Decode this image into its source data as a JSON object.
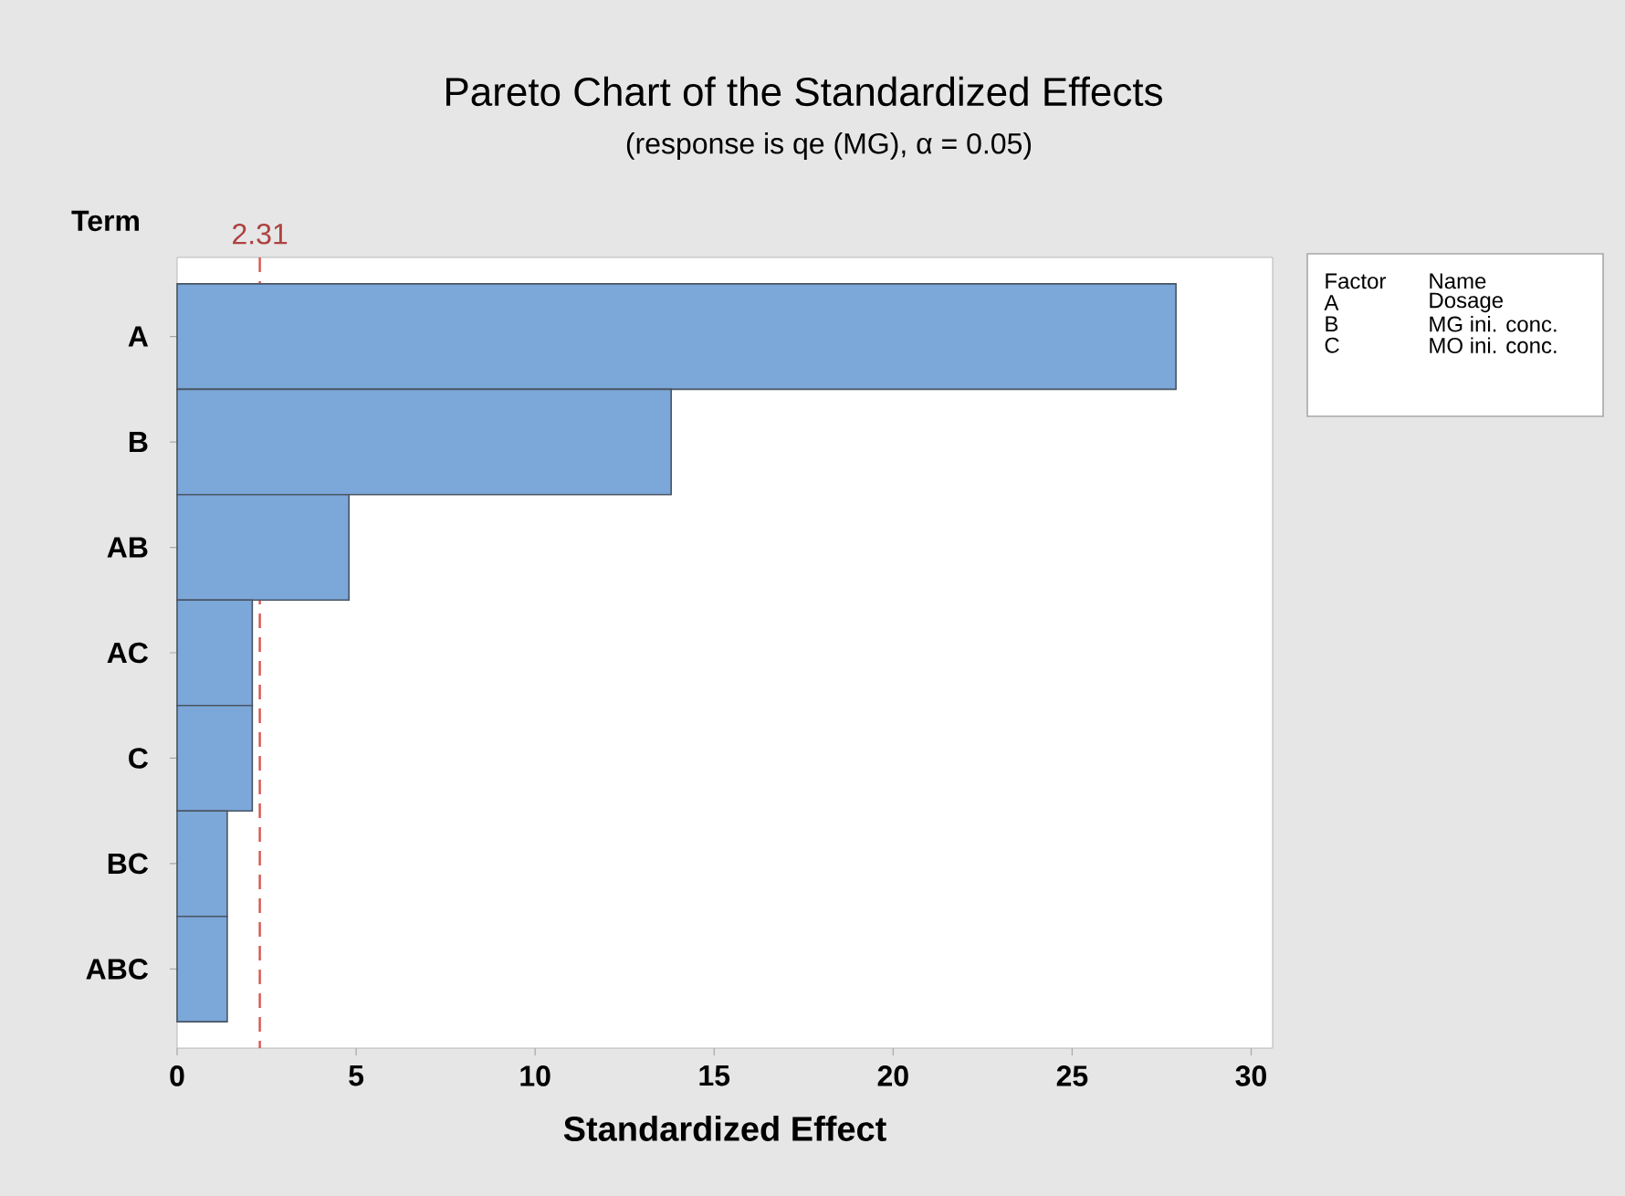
{
  "chart_data": {
    "type": "bar",
    "orientation": "horizontal",
    "title": "Pareto Chart of the Standardized Effects",
    "subtitle": "(response is qe (MG), α = 0.05)",
    "xlabel": "Standardized Effect",
    "ylabel": "Term",
    "categories": [
      "A",
      "B",
      "AB",
      "AC",
      "C",
      "BC",
      "ABC"
    ],
    "values": [
      27.9,
      13.8,
      4.8,
      2.1,
      2.1,
      1.4,
      1.4
    ],
    "color": "#7ba7d9",
    "xlim": [
      0,
      30.6
    ],
    "xticks": [
      0,
      5,
      10,
      15,
      20,
      25,
      30
    ],
    "ref_lines": [
      {
        "axis": "x",
        "value": 2.31,
        "label": "2.31",
        "color": "#d9534f",
        "line_style": "dashed"
      }
    ],
    "annotations": [
      "Factor",
      "Name",
      "A",
      "Dosage",
      "B",
      "MG ini. conc.",
      "C",
      "MO ini. conc."
    ]
  }
}
